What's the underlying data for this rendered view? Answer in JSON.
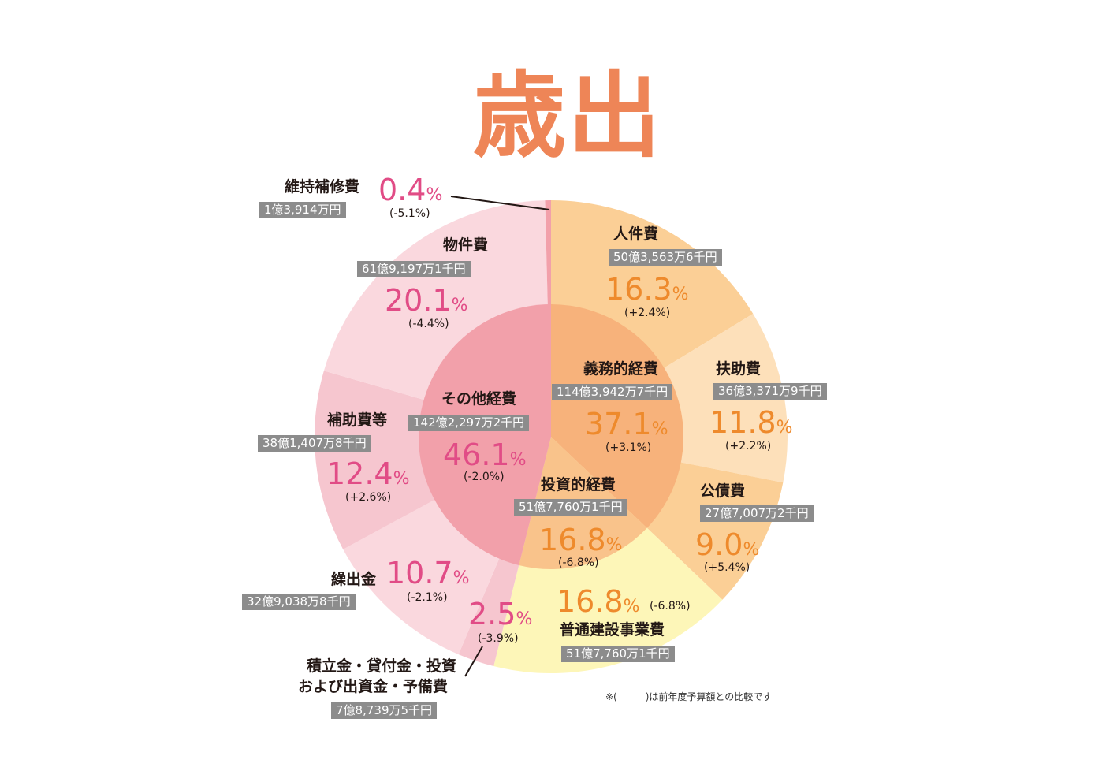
{
  "title": "歳出",
  "chart_data": {
    "type": "pie",
    "title": "歳出",
    "inner": [
      {
        "name": "義務的経費",
        "amount": "114億3,942万7千円",
        "value": 37.1,
        "change": "(+3.1%)",
        "color": "#f7b27b"
      },
      {
        "name": "投資的経費",
        "amount": "51億7,760万1千円",
        "value": 16.8,
        "change": "(-6.8%)",
        "color": "#f9c38b"
      },
      {
        "name": "その他経費",
        "amount": "142億2,297万2千円",
        "value": 46.1,
        "change": "(-2.0%)",
        "color": "#f2a0aa"
      }
    ],
    "outer": [
      {
        "name": "人件費",
        "amount": "50億3,563万6千円",
        "value": 16.3,
        "change": "(+2.4%)",
        "color": "#fbcf96"
      },
      {
        "name": "扶助費",
        "amount": "36億3,371万9千円",
        "value": 11.8,
        "change": "(+2.2%)",
        "color": "#fde0ba"
      },
      {
        "name": "公債費",
        "amount": "27億7,007万2千円",
        "value": 9.0,
        "change": "(+5.4%)",
        "color": "#fbcf96"
      },
      {
        "name": "普通建設事業費",
        "amount": "51億7,760万1千円",
        "value": 16.8,
        "change": "(-6.8%)",
        "color": "#fdf6b8"
      },
      {
        "name": "積立金・貸付金・投資および出資金・予備費",
        "amount": "7億8,739万5千円",
        "value": 2.5,
        "change": "(-3.9%)",
        "color": "#f6c6cf"
      },
      {
        "name": "繰出金",
        "amount": "32億9,038万8千円",
        "value": 10.7,
        "change": "(-2.1%)",
        "color": "#fad8de"
      },
      {
        "name": "補助費等",
        "amount": "38億1,407万8千円",
        "value": 12.4,
        "change": "(+2.6%)",
        "color": "#f6c6cf"
      },
      {
        "name": "物件費",
        "amount": "61億9,197万1千円",
        "value": 20.1,
        "change": "(-4.4%)",
        "color": "#fad8de"
      },
      {
        "name": "維持補修費",
        "amount": "1億3,914万円",
        "value": 0.4,
        "change": "(-5.1%)",
        "color": "#f2a0aa"
      }
    ]
  },
  "labels": {
    "gimu": {
      "name": "義務的経費",
      "amount": "114億3,942万7千円",
      "pct": "37.1",
      "change": "(+3.1%)"
    },
    "toshi": {
      "name": "投資的経費",
      "amount": "51億7,760万1千円",
      "pct": "16.8",
      "change": "(-6.8%)"
    },
    "sonota": {
      "name": "その他経費",
      "amount": "142億2,297万2千円",
      "pct": "46.1",
      "change": "(-2.0%)"
    },
    "jinken": {
      "name": "人件費",
      "amount": "50億3,563万6千円",
      "pct": "16.3",
      "change": "(+2.4%)"
    },
    "fujo": {
      "name": "扶助費",
      "amount": "36億3,371万9千円",
      "pct": "11.8",
      "change": "(+2.2%)"
    },
    "kosai": {
      "name": "公債費",
      "amount": "27億7,007万2千円",
      "pct": "9.0",
      "change": "(+5.4%)"
    },
    "futsu": {
      "name": "普通建設事業費",
      "amount": "51億7,760万1千円",
      "pct": "16.8",
      "change": "(-6.8%)"
    },
    "tsumitate": {
      "name1": "積立金・貸付金・投資",
      "name2": "および出資金・予備費",
      "amount": "7億8,739万5千円",
      "pct": "2.5",
      "change": "(-3.9%)"
    },
    "kuridashi": {
      "name": "繰出金",
      "amount": "32億9,038万8千円",
      "pct": "10.7",
      "change": "(-2.1%)"
    },
    "hojo": {
      "name": "補助費等",
      "amount": "38億1,407万8千円",
      "pct": "12.4",
      "change": "(+2.6%)"
    },
    "bukken": {
      "name": "物件費",
      "amount": "61億9,197万1千円",
      "pct": "20.1",
      "change": "(-4.4%)"
    },
    "iji": {
      "name": "維持補修費",
      "amount": "1億3,914万円",
      "pct": "0.4",
      "change": "(-5.1%)"
    }
  },
  "pct_sign": "%",
  "note": "※(　　　)は前年度予算額との比較です"
}
